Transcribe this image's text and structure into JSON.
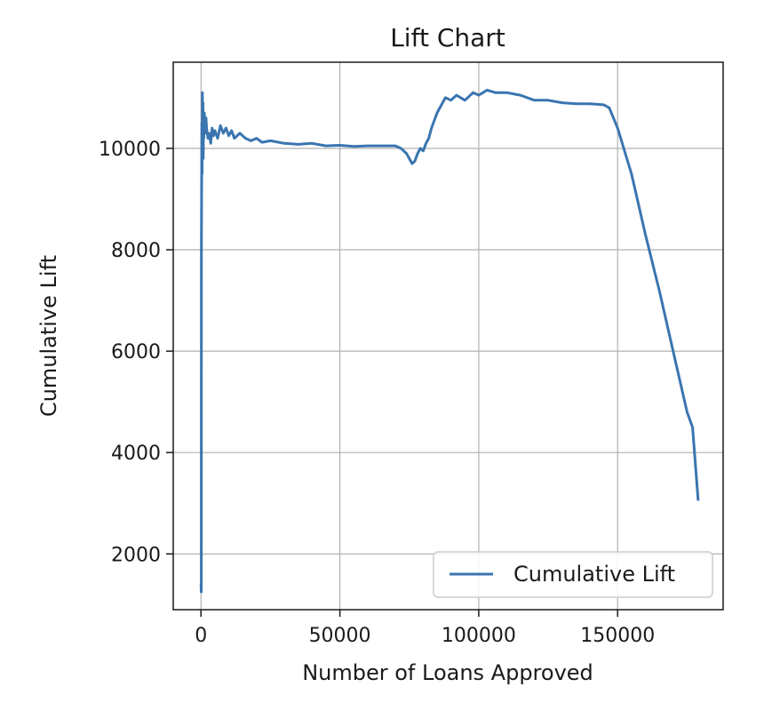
{
  "chart_data": {
    "type": "line",
    "title": "Lift Chart",
    "xlabel": "Number of Loans Approved",
    "ylabel": "Cumulative Lift",
    "xlim": [
      -10000,
      188000
    ],
    "ylim": [
      900,
      11700
    ],
    "xticks": [
      0,
      50000,
      100000,
      150000
    ],
    "yticks": [
      2000,
      4000,
      6000,
      8000,
      10000
    ],
    "grid": true,
    "legend_position": "lower-right",
    "series": [
      {
        "name": "Cumulative Lift",
        "color": "#3a75b0",
        "x": [
          0,
          50,
          100,
          150,
          200,
          300,
          400,
          500,
          600,
          700,
          800,
          900,
          1000,
          1200,
          1500,
          1800,
          2000,
          2500,
          3000,
          3500,
          4000,
          4500,
          5000,
          6000,
          7000,
          8000,
          9000,
          10000,
          11000,
          12000,
          14000,
          16000,
          18000,
          20000,
          22000,
          25000,
          30000,
          35000,
          40000,
          45000,
          50000,
          55000,
          60000,
          65000,
          70000,
          72000,
          74000,
          75000,
          76000,
          77000,
          78000,
          79000,
          80000,
          81000,
          82000,
          83000,
          85000,
          87000,
          88000,
          90000,
          92000,
          95000,
          98000,
          100000,
          103000,
          106000,
          110000,
          115000,
          120000,
          125000,
          130000,
          135000,
          140000,
          145000,
          147000,
          150000,
          155000,
          160000,
          165000,
          170000,
          175000,
          177000,
          179000
        ],
        "y": [
          1400,
          1300,
          1250,
          8000,
          9000,
          10500,
          9500,
          11100,
          10400,
          10900,
          9800,
          10600,
          10200,
          10700,
          10300,
          10600,
          10400,
          10200,
          10300,
          10100,
          10400,
          10250,
          10350,
          10200,
          10450,
          10300,
          10400,
          10250,
          10350,
          10200,
          10300,
          10200,
          10150,
          10200,
          10120,
          10150,
          10100,
          10080,
          10100,
          10050,
          10060,
          10040,
          10050,
          10050,
          10050,
          10000,
          9900,
          9800,
          9700,
          9750,
          9900,
          10000,
          9950,
          10100,
          10200,
          10400,
          10700,
          10900,
          11000,
          10950,
          11050,
          10950,
          11100,
          11050,
          11150,
          11100,
          11100,
          11050,
          10950,
          10950,
          10900,
          10880,
          10880,
          10860,
          10800,
          10400,
          9500,
          8300,
          7200,
          6000,
          4800,
          4500,
          3050
        ]
      }
    ]
  }
}
